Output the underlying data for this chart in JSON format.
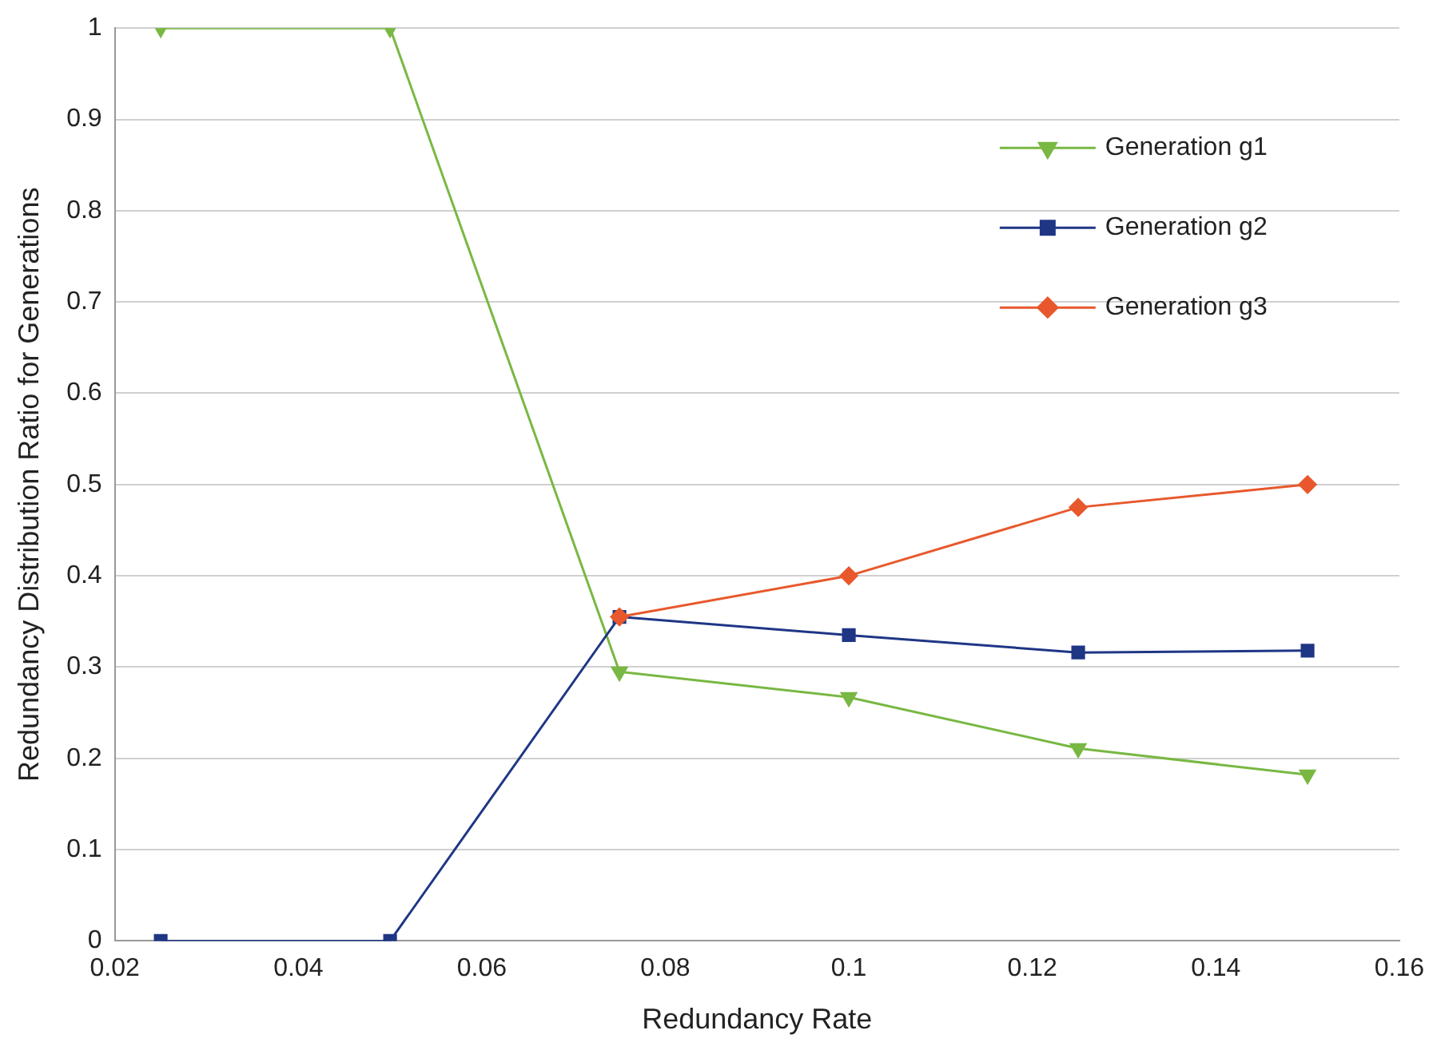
{
  "chart_data": {
    "type": "line",
    "xlabel": "Redundancy Rate",
    "ylabel": "Redundancy Distribution Ratio for Generations",
    "x": [
      0.025,
      0.05,
      0.075,
      0.1,
      0.125,
      0.15
    ],
    "series": [
      {
        "name": "Generation g1",
        "color": "#78b843",
        "marker": "triangle",
        "values": [
          1,
          1,
          0.295,
          0.267,
          0.211,
          0.182
        ]
      },
      {
        "name": "Generation g2",
        "color": "#1f3685",
        "marker": "square",
        "values": [
          0,
          0,
          0.355,
          0.335,
          0.316,
          0.318
        ]
      },
      {
        "name": "Generation g3",
        "color": "#e8582c",
        "marker": "diamond",
        "values": [
          null,
          null,
          0.355,
          0.4,
          0.475,
          0.5
        ]
      }
    ],
    "xlim": [
      0.02,
      0.16
    ],
    "xticks": [
      0.02,
      0.04,
      0.06,
      0.08,
      0.1,
      0.12,
      0.14,
      0.16
    ],
    "ylim": [
      0,
      1
    ],
    "yticks": [
      0,
      0.1,
      0.2,
      0.3,
      0.4,
      0.5,
      0.6,
      0.7,
      0.8,
      0.9,
      1
    ],
    "grid": "y",
    "legend": "top right",
    "line_style": "solid"
  }
}
